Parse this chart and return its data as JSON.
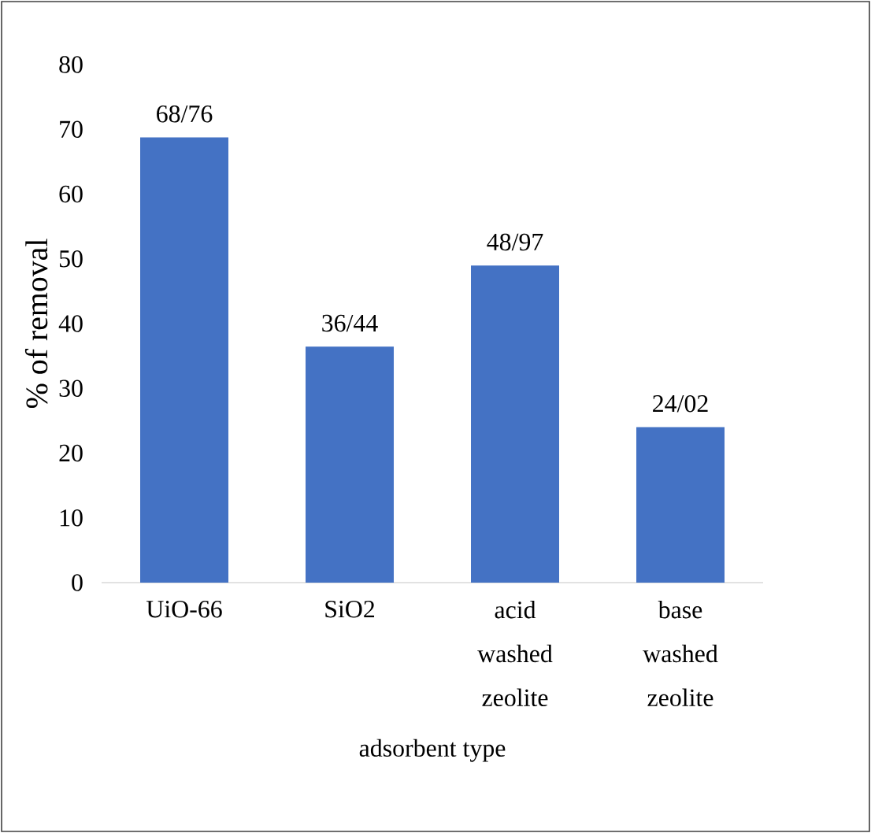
{
  "chart_data": {
    "type": "bar",
    "categories": [
      "UiO-66",
      "SiO2",
      "acid washed zeolite",
      "base washed zeolite"
    ],
    "values": [
      68.76,
      36.44,
      48.97,
      24.02
    ],
    "value_labels": [
      "68/76",
      "36/44",
      "48/97",
      "24/02"
    ],
    "color": "#4472c4",
    "xlabel": "adsorbent type",
    "ylabel": "% of removal",
    "ylim": [
      0,
      80
    ],
    "yticks": [
      0,
      10,
      20,
      30,
      40,
      50,
      60,
      70,
      80
    ]
  }
}
